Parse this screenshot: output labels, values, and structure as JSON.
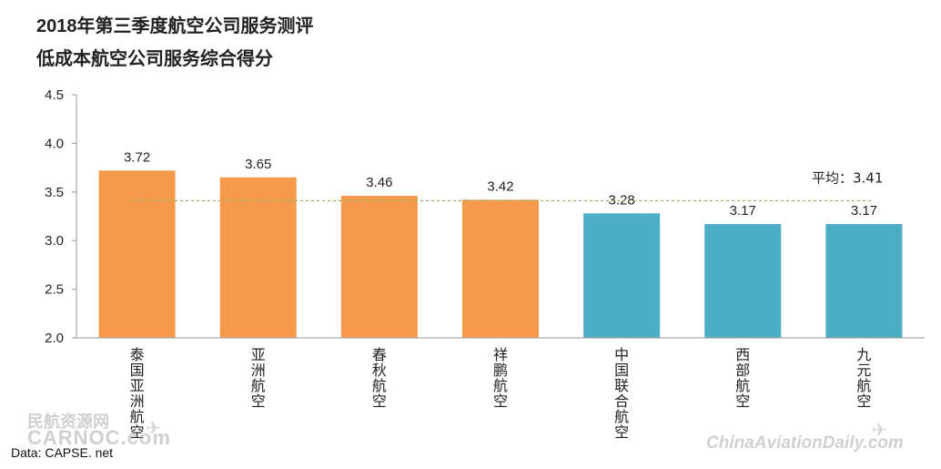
{
  "header": {
    "title": "2018年第三季度航空公司服务测评",
    "subtitle": "低成本航空公司服务综合得分"
  },
  "source": "Data: CAPSE. net",
  "watermarks": {
    "left_cn": "民航资源网",
    "left_en": "CARNOC.com",
    "right": "ChinaAviationDaily.com"
  },
  "chart_data": {
    "type": "bar",
    "categories": [
      "泰国亚洲航空",
      "亚洲航空",
      "春秋航空",
      "祥鹏航空",
      "中国联合航空",
      "西部航空",
      "九元航空"
    ],
    "values": [
      3.72,
      3.65,
      3.46,
      3.42,
      3.28,
      3.17,
      3.17
    ],
    "value_labels": [
      "3.72",
      "3.65",
      "3.46",
      "3.42",
      "3.28",
      "3.17",
      "3.17"
    ],
    "bar_colors": [
      "#F59A4B",
      "#F59A4B",
      "#F59A4B",
      "#F59A4B",
      "#4BADC6",
      "#4BADC6",
      "#4BADC6"
    ],
    "ylim": [
      2.0,
      4.5
    ],
    "yticks": [
      "2.0",
      "2.5",
      "3.0",
      "3.5",
      "4.0",
      "4.5"
    ],
    "average": {
      "value": 3.41,
      "label": "平均：3.41",
      "color": "#9BB067"
    },
    "grid": false,
    "title": "",
    "xlabel": "",
    "ylabel": ""
  }
}
